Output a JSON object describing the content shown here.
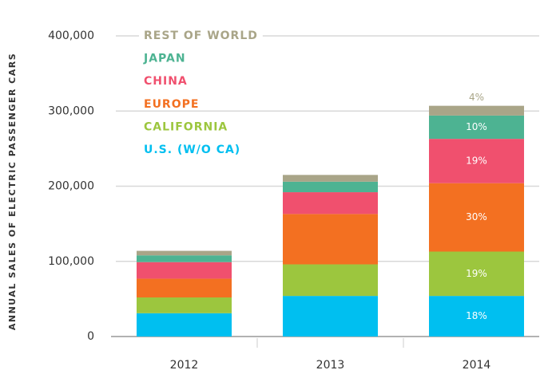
{
  "chart_data": {
    "type": "stacked_bar",
    "y_axis_label": "ANNUAL SALES OF ELECTRIC PASSENGER CARS",
    "categories": [
      "2012",
      "2013",
      "2014"
    ],
    "series": [
      {
        "name": "U.S. (W/O CA)",
        "color": "#00bff0",
        "values": [
          31000,
          54000,
          54000
        ],
        "value_labels": [
          null,
          null,
          "18%"
        ]
      },
      {
        "name": "CALIFORNIA",
        "color": "#9cc63e",
        "values": [
          21000,
          42000,
          59000
        ],
        "value_labels": [
          null,
          null,
          "19%"
        ]
      },
      {
        "name": "EUROPE",
        "color": "#f37021",
        "values": [
          25000,
          67000,
          91000
        ],
        "value_labels": [
          null,
          null,
          "30%"
        ]
      },
      {
        "name": "CHINA",
        "color": "#f0506e",
        "values": [
          22000,
          29000,
          59000
        ],
        "value_labels": [
          null,
          null,
          "19%"
        ]
      },
      {
        "name": "JAPAN",
        "color": "#4db392",
        "values": [
          9000,
          14000,
          31000
        ],
        "value_labels": [
          null,
          null,
          "10%"
        ]
      },
      {
        "name": "REST OF WORLD",
        "color": "#a9a588",
        "values": [
          6000,
          9000,
          13000
        ],
        "value_labels": [
          null,
          null,
          "4%"
        ]
      }
    ],
    "ylim": [
      0,
      400000
    ],
    "yticks": [
      0,
      {
        "value": 100000,
        "label": "100,000"
      },
      {
        "value": 200000,
        "label": "200,000"
      },
      {
        "value": 300000,
        "label": "300,000"
      },
      {
        "value": 400000,
        "label": "400,000"
      }
    ],
    "grid": true,
    "legend": "upper left"
  }
}
